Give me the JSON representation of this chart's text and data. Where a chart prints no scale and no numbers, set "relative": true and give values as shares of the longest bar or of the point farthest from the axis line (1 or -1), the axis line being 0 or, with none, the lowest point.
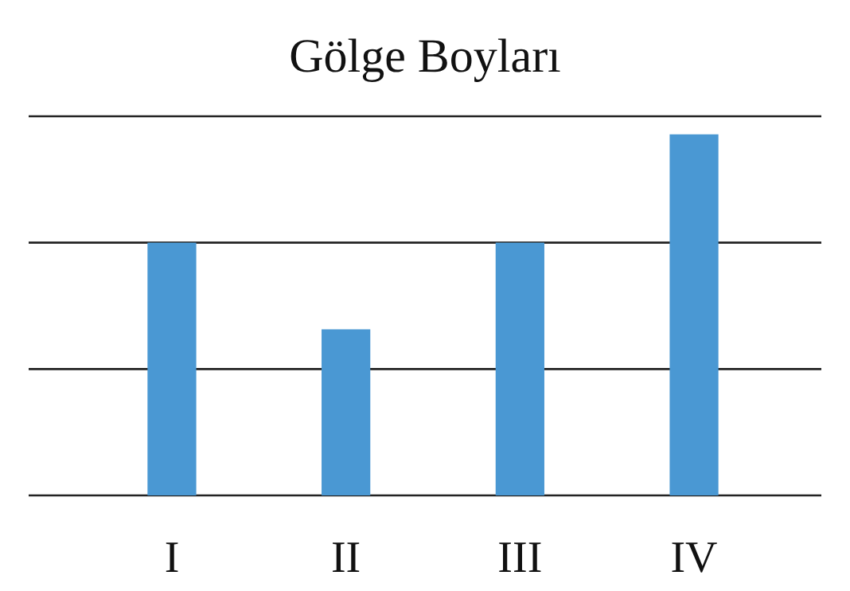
{
  "chart_data": {
    "type": "bar",
    "title": "Gölge Boyları",
    "categories": [
      "I",
      "II",
      "III",
      "IV"
    ],
    "values": [
      0.7,
      0.46,
      0.7,
      1
    ],
    "color": "#4a98d3",
    "relative": true,
    "ref_lines": [
      {
        "axis": "y",
        "value": 0.35,
        "color": "#222222"
      },
      {
        "axis": "y",
        "value": 0.7,
        "color": "#222222"
      },
      {
        "axis": "y",
        "value": 1.05,
        "color": "#222222"
      }
    ]
  }
}
